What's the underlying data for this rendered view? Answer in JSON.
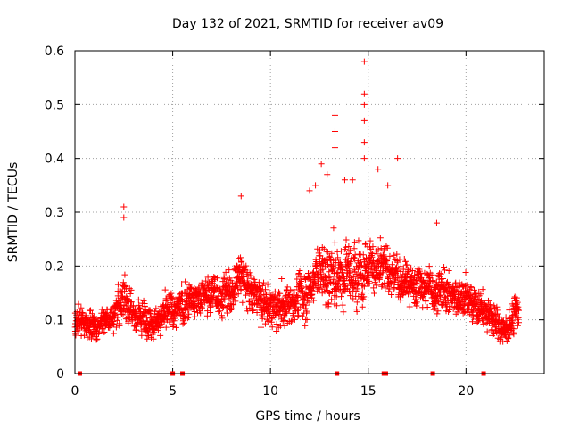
{
  "chart_data": {
    "type": "scatter",
    "title": "Day 132 of 2021, SRMTID for receiver av09",
    "xlabel": "GPS time / hours",
    "ylabel": "SRMTID / TECUs",
    "xlim": [
      0,
      24
    ],
    "ylim": [
      0,
      0.6
    ],
    "xticks": [
      0,
      5,
      10,
      15,
      20
    ],
    "yticks": [
      0,
      0.1,
      0.2,
      0.3,
      0.4,
      0.5,
      0.6
    ],
    "xtick_labels": [
      "0",
      "5",
      "10",
      "15",
      "20"
    ],
    "ytick_labels": [
      "0",
      "0.1",
      "0.2",
      "0.3",
      "0.4",
      "0.5",
      "0.6"
    ],
    "grid": true,
    "series": [
      {
        "name": "SRMTID",
        "marker": "plus",
        "color": "#ff0000",
        "profile": {
          "hours": [
            0,
            1,
            2,
            2.5,
            3,
            4,
            5,
            6,
            7,
            8,
            8.5,
            9,
            10,
            11,
            12,
            12.5,
            13,
            13.5,
            14,
            14.5,
            15,
            15.5,
            16,
            17,
            18,
            19,
            20,
            21,
            22,
            22.7
          ],
          "mean": [
            0.1,
            0.09,
            0.11,
            0.15,
            0.11,
            0.1,
            0.12,
            0.14,
            0.15,
            0.15,
            0.19,
            0.15,
            0.12,
            0.13,
            0.16,
            0.2,
            0.18,
            0.19,
            0.2,
            0.18,
            0.21,
            0.19,
            0.19,
            0.17,
            0.16,
            0.15,
            0.14,
            0.11,
            0.08,
            0.12
          ],
          "spread": [
            0.04,
            0.04,
            0.04,
            0.07,
            0.05,
            0.05,
            0.05,
            0.06,
            0.06,
            0.06,
            0.08,
            0.06,
            0.06,
            0.06,
            0.07,
            0.09,
            0.09,
            0.1,
            0.09,
            0.1,
            0.08,
            0.08,
            0.07,
            0.06,
            0.06,
            0.06,
            0.06,
            0.05,
            0.04,
            0.05
          ]
        },
        "outliers": [
          {
            "x": 2.5,
            "y": 0.31
          },
          {
            "x": 2.5,
            "y": 0.29
          },
          {
            "x": 8.5,
            "y": 0.33
          },
          {
            "x": 12.6,
            "y": 0.39
          },
          {
            "x": 12.9,
            "y": 0.37
          },
          {
            "x": 13.3,
            "y": 0.48
          },
          {
            "x": 13.3,
            "y": 0.45
          },
          {
            "x": 13.3,
            "y": 0.42
          },
          {
            "x": 13.8,
            "y": 0.36
          },
          {
            "x": 14.2,
            "y": 0.36
          },
          {
            "x": 14.8,
            "y": 0.58
          },
          {
            "x": 14.8,
            "y": 0.52
          },
          {
            "x": 14.8,
            "y": 0.5
          },
          {
            "x": 14.8,
            "y": 0.47
          },
          {
            "x": 14.8,
            "y": 0.43
          },
          {
            "x": 14.8,
            "y": 0.4
          },
          {
            "x": 16.5,
            "y": 0.4
          },
          {
            "x": 16.0,
            "y": 0.35
          },
          {
            "x": 15.5,
            "y": 0.38
          },
          {
            "x": 18.5,
            "y": 0.28
          },
          {
            "x": 12.0,
            "y": 0.34
          },
          {
            "x": 12.3,
            "y": 0.35
          }
        ]
      }
    ],
    "markers_on_xaxis": [
      0.25,
      5.0,
      5.5,
      13.4,
      15.8,
      15.9,
      18.3,
      20.9
    ]
  }
}
